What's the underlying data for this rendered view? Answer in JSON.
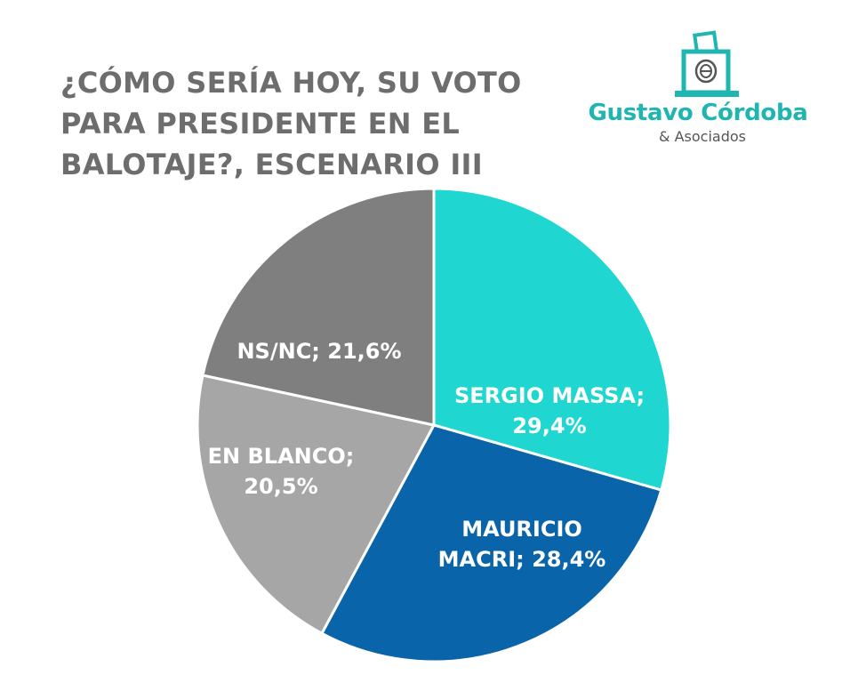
{
  "header": {
    "title_lines": [
      "¿CÓMO SERÍA HOY, SU VOTO",
      "PARA PRESIDENTE EN EL",
      "BALOTAJE?, ESCENARIO III"
    ]
  },
  "logo": {
    "name": "Gustavo Córdoba",
    "subtitle": "& Asociados",
    "icon": "ballot-box-icon",
    "color": "#1fb5b0"
  },
  "chart_data": {
    "type": "pie",
    "title": "¿CÓMO SERÍA HOY, SU VOTO PARA PRESIDENTE EN EL BALOTAJE?, ESCENARIO III",
    "start_angle_deg": 0,
    "direction": "clockwise",
    "legend": "none",
    "slices": [
      {
        "name": "SERGIO MASSA",
        "value": 29.4,
        "label_lines": [
          "SERGIO MASSA;",
          "29,4%"
        ],
        "color": "#1fd6d1"
      },
      {
        "name": "MAURICIO MACRI",
        "value": 28.4,
        "label_lines": [
          "MAURICIO",
          "MACRI; 28,4%"
        ],
        "color": "#0a64aa"
      },
      {
        "name": "EN BLANCO",
        "value": 20.5,
        "label_lines": [
          "EN BLANCO;",
          "20,5%"
        ],
        "color": "#a6a6a6"
      },
      {
        "name": "NS/NC",
        "value": 21.6,
        "label_lines": [
          "NS/NC; 21,6%"
        ],
        "color": "#7f7f7f"
      }
    ]
  }
}
